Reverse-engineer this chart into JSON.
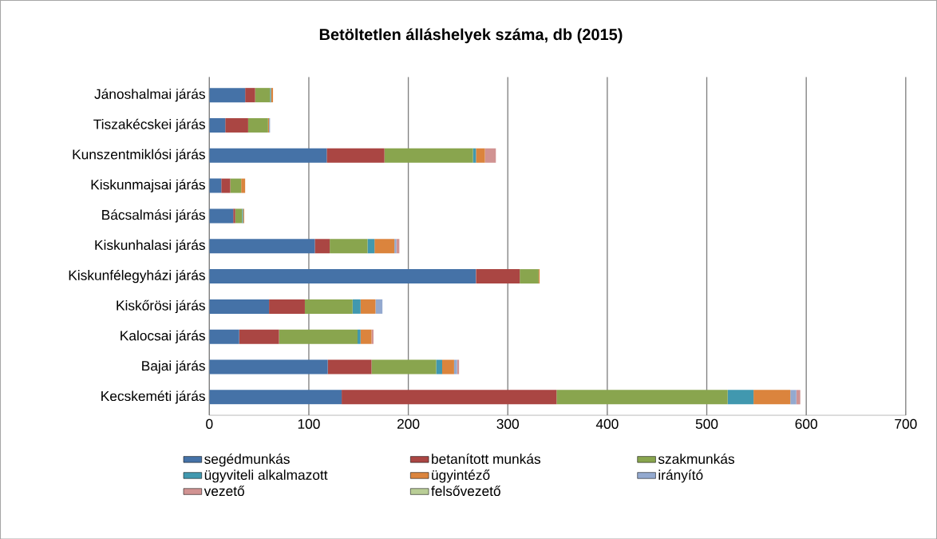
{
  "chart_data": {
    "type": "bar",
    "orientation": "horizontal",
    "stacked": true,
    "title": "Betöltetlen álláshelyek száma, db (2015)",
    "categories": [
      "Jánoshalmai járás",
      "Tiszakécskei járás",
      "Kunszentmiklósi járás",
      "Kiskunmajsai járás",
      "Bácsalmási járás",
      "Kiskunhalasi járás",
      "Kiskunfélegyházi járás",
      "Kiskőrösi járás",
      "Kalocsai járás",
      "Bajai járás",
      "Kecskeméti járás"
    ],
    "series": [
      {
        "name": "segédmunkás",
        "color": "#4572a7",
        "values": [
          36,
          16,
          118,
          12,
          24,
          106,
          268,
          60,
          30,
          119,
          133
        ]
      },
      {
        "name": "betanított munkás",
        "color": "#aa4643",
        "values": [
          10,
          23,
          58,
          9,
          2,
          15,
          44,
          36,
          40,
          44,
          216
        ]
      },
      {
        "name": "szakmunkás",
        "color": "#89a54e",
        "values": [
          15,
          20,
          89,
          11,
          7,
          38,
          19,
          48,
          79,
          65,
          172
        ]
      },
      {
        "name": "ügyviteli alkalmazott",
        "color": "#4198af",
        "values": [
          1,
          0,
          3,
          0,
          1,
          7,
          0,
          8,
          3,
          6,
          26
        ]
      },
      {
        "name": "ügyintéző",
        "color": "#db843d",
        "values": [
          2,
          1,
          9,
          4,
          1,
          20,
          1,
          15,
          11,
          12,
          37
        ]
      },
      {
        "name": "irányító",
        "color": "#93a9cf",
        "values": [
          0,
          1,
          0,
          0,
          0,
          2,
          0,
          7,
          null,
          3,
          6
        ]
      },
      {
        "name": "vezető",
        "color": "#d19392",
        "values": [
          0,
          0,
          11,
          0,
          0,
          3,
          0,
          0,
          2,
          2,
          4
        ]
      },
      {
        "name": "felsővezető",
        "color": "#b9cd96",
        "values": [
          0,
          0,
          0,
          0,
          0,
          0,
          0,
          0,
          0,
          0,
          0
        ]
      }
    ],
    "xlim": [
      0,
      700
    ],
    "xticks": [
      0,
      100,
      200,
      300,
      400,
      500,
      600,
      700
    ],
    "grid": "x",
    "legend": "bottom"
  }
}
